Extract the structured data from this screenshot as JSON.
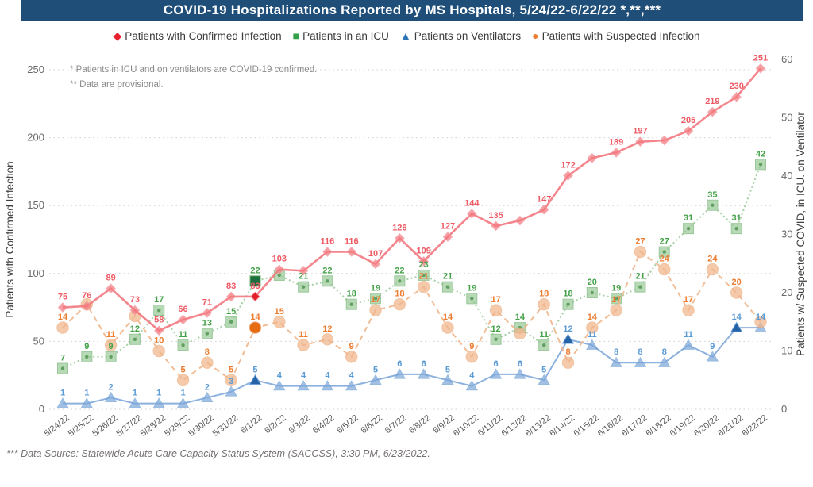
{
  "title": {
    "text": "COVID-19 Hospitalizations Reported by MS Hospitals, 5/24/22-6/22/22 *,**,***"
  },
  "notes": [
    "* Patients in ICU and on ventilators are COVID-19 confirmed.",
    "** Data are provisional."
  ],
  "footer": {
    "text": "*** Data Source: Statewide Acute Care Capacity Status System (SACCSS), 3:30 PM, 6/23/2022."
  },
  "legend": [
    {
      "label": "Patients with Confirmed Infection",
      "marker": "diamond",
      "color": "#e8212e"
    },
    {
      "label": "Patients in an ICU",
      "marker": "square",
      "color": "#34a049"
    },
    {
      "label": "Patients on Ventilators",
      "marker": "triangle",
      "color": "#2e75b6"
    },
    {
      "label": "Patients with Suspected Infection",
      "marker": "circle",
      "color": "#ed7d31"
    }
  ],
  "chart_data": {
    "type": "line",
    "x": [
      "5/24/22",
      "5/25/22",
      "5/26/22",
      "5/27/22",
      "5/28/22",
      "5/29/22",
      "5/30/22",
      "5/31/22",
      "6/1/22",
      "6/2/22",
      "6/3/22",
      "6/4/22",
      "6/5/22",
      "6/6/22",
      "6/7/22",
      "6/8/22",
      "6/9/22",
      "6/10/22",
      "6/11/22",
      "6/12/22",
      "6/13/22",
      "6/14/22",
      "6/15/22",
      "6/16/22",
      "6/17/22",
      "6/18/22",
      "6/19/22",
      "6/20/22",
      "6/21/22",
      "6/22/22"
    ],
    "left_axis": {
      "title": "Patients with Confirmed Infection",
      "ticks": [
        0,
        50,
        100,
        150,
        200,
        250
      ],
      "range": [
        0,
        250
      ]
    },
    "right_axis": {
      "title": "Patients w/ Suspected COVID, in ICU. on Ventilator",
      "ticks": [
        0,
        10,
        20,
        30,
        40,
        50,
        60
      ],
      "range": [
        0,
        60
      ]
    },
    "grid": "dotted-horizontal",
    "legend_position": "top",
    "series": [
      {
        "name": "Patients in an ICU",
        "axis": "right",
        "marker": "square",
        "line_style": "dotted",
        "color": "#9ccb9b",
        "edge_color": "#74b474",
        "label_color": "#44a248",
        "highlight_color": "#1d6f3f",
        "values": [
          7,
          9,
          9,
          12,
          17,
          11,
          13,
          15,
          22,
          23,
          21,
          22,
          18,
          19,
          22,
          23,
          21,
          19,
          12,
          14,
          11,
          18,
          20,
          19,
          21,
          27,
          31,
          35,
          31,
          42
        ],
        "hidden_label_indices": [
          9
        ],
        "highlight_indices": [
          8
        ]
      },
      {
        "name": "Patients on Ventilators",
        "axis": "right",
        "marker": "triangle",
        "line_style": "solid",
        "color": "#7fa9da",
        "edge_color": "#6e9fd4",
        "label_color": "#5b9bd5",
        "highlight_color": "#2463a8",
        "values": [
          1,
          1,
          2,
          1,
          1,
          1,
          2,
          3,
          5,
          4,
          4,
          4,
          4,
          5,
          6,
          6,
          5,
          4,
          6,
          6,
          5,
          12,
          11,
          8,
          8,
          8,
          11,
          9,
          14,
          14
        ],
        "hidden_label_indices": [],
        "highlight_indices": [
          8,
          21,
          28
        ]
      },
      {
        "name": "Patients with Suspected Infection",
        "axis": "right",
        "marker": "circle",
        "line_style": "dashed",
        "color": "#f0b68c",
        "edge_color": "#edab7c",
        "label_color": "#ed7d31",
        "highlight_color": "#e66c11",
        "values": [
          14,
          18,
          11,
          16,
          10,
          5,
          8,
          5,
          14,
          15,
          11,
          12,
          9,
          17,
          18,
          21,
          14,
          9,
          17,
          13,
          18,
          8,
          14,
          17,
          27,
          24,
          17,
          24,
          20,
          15
        ],
        "hidden_label_indices": [
          1,
          3,
          19,
          29
        ],
        "highlight_indices": [
          8
        ]
      },
      {
        "name": "Patients with Confirmed Infection",
        "axis": "left",
        "marker": "diamond",
        "line_style": "solid",
        "color": "#f3787f",
        "edge_color": "#f28e95",
        "label_color": "#ee5a64",
        "highlight_color": "#e31e2b",
        "values": [
          75,
          76,
          89,
          73,
          58,
          66,
          71,
          83,
          83,
          103,
          102,
          116,
          116,
          107,
          126,
          109,
          127,
          144,
          135,
          139,
          147,
          172,
          185,
          189,
          197,
          198,
          205,
          219,
          230,
          251
        ],
        "hidden_label_indices": [
          10,
          19,
          22,
          25
        ],
        "highlight_indices": [
          8
        ]
      }
    ]
  }
}
